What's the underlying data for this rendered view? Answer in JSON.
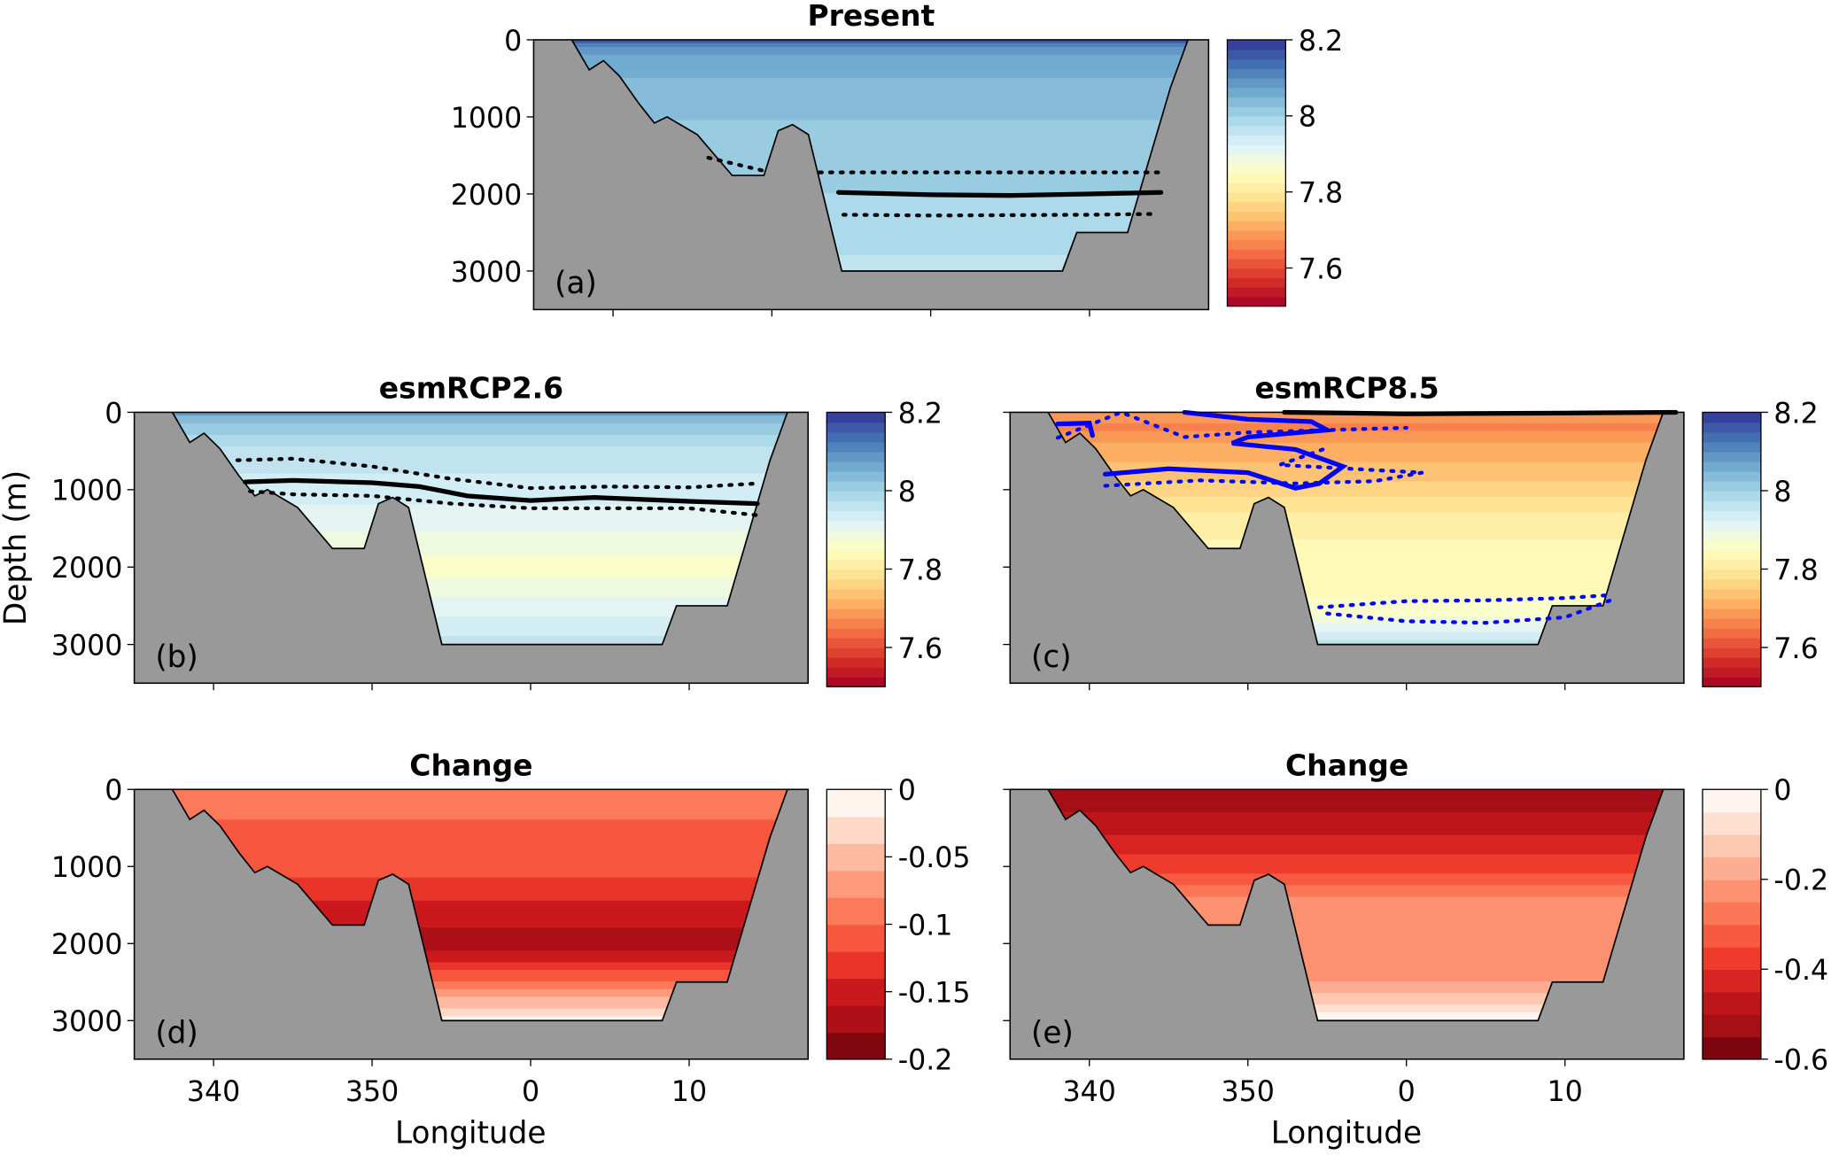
{
  "chart_data": {
    "type": "heatmap",
    "subtype": "filled-contour depth-longitude sections",
    "xlabel": "Longitude",
    "ylabel": "Depth (m)",
    "xlim": [
      335,
      17.5
    ],
    "ylim": [
      3500,
      0
    ],
    "xticks": [
      340,
      350,
      0,
      10
    ],
    "yticks": [
      0,
      1000,
      2000,
      3000
    ],
    "land_color": "#999999",
    "bathymetry": [
      [
        337.4,
        0
      ],
      [
        338.5,
        390
      ],
      [
        339.4,
        270
      ],
      [
        340.4,
        470
      ],
      [
        341.6,
        820
      ],
      [
        342.6,
        1080
      ],
      [
        343.4,
        1000
      ],
      [
        345.3,
        1230
      ],
      [
        347.5,
        1760
      ],
      [
        349.5,
        1760
      ],
      [
        350.4,
        1180
      ],
      [
        351.3,
        1100
      ],
      [
        352.3,
        1230
      ],
      [
        354.4,
        3000
      ],
      [
        8.3,
        3000
      ],
      [
        9.2,
        2500
      ],
      [
        12.4,
        2500
      ],
      [
        15.1,
        620
      ],
      [
        16.2,
        0
      ]
    ],
    "panels": [
      {
        "id": "a",
        "title": "Present",
        "label": "(a)",
        "cmap": "RdYlBu",
        "clim": [
          7.5,
          8.2
        ],
        "cbar_ticks": [
          "8.2",
          "8",
          "7.8",
          "7.6"
        ],
        "cbar_tick_values": [
          8.2,
          8.0,
          7.8,
          7.6
        ],
        "profile": [
          [
            0,
            8.17
          ],
          [
            100,
            8.1
          ],
          [
            300,
            8.06
          ],
          [
            700,
            8.04
          ],
          [
            1200,
            8.02
          ],
          [
            2000,
            8.0
          ],
          [
            2600,
            7.98
          ],
          [
            3000,
            7.97
          ]
        ],
        "lines": [
          {
            "style": "solid",
            "color": "#000000",
            "points": [
              [
                354.2,
                1980
              ],
              [
                0,
                2010
              ],
              [
                5,
                2020
              ],
              [
                10,
                2000
              ],
              [
                14.5,
                1980
              ]
            ]
          },
          {
            "style": "dotted",
            "color": "#000000",
            "points": [
              [
                346,
                1530
              ],
              [
                349.5,
                1700
              ]
            ]
          },
          {
            "style": "dotted",
            "color": "#000000",
            "points": [
              [
                353,
                1720
              ],
              [
                0,
                1720
              ],
              [
                10,
                1720
              ],
              [
                14.8,
                1720
              ]
            ]
          },
          {
            "style": "dotted",
            "color": "#000000",
            "points": [
              [
                354.5,
                2270
              ],
              [
                0,
                2280
              ],
              [
                10,
                2270
              ],
              [
                14,
                2260
              ]
            ]
          }
        ]
      },
      {
        "id": "b",
        "title": "esmRCP2.6",
        "label": "(b)",
        "cmap": "RdYlBu",
        "clim": [
          7.5,
          8.2
        ],
        "cbar_ticks": [
          "8.2",
          "8",
          "7.8",
          "7.6"
        ],
        "cbar_tick_values": [
          8.2,
          8.0,
          7.8,
          7.6
        ],
        "profile": [
          [
            0,
            8.1
          ],
          [
            100,
            8.03
          ],
          [
            400,
            7.98
          ],
          [
            800,
            7.95
          ],
          [
            1300,
            7.92
          ],
          [
            1800,
            7.88
          ],
          [
            2000,
            7.86
          ],
          [
            2300,
            7.89
          ],
          [
            2700,
            7.93
          ],
          [
            3000,
            7.96
          ]
        ],
        "lines": [
          {
            "style": "solid",
            "color": "#000000",
            "points": [
              [
                342,
                900
              ],
              [
                345,
                880
              ],
              [
                350,
                910
              ],
              [
                353,
                960
              ],
              [
                356,
                1080
              ],
              [
                0,
                1140
              ],
              [
                4,
                1100
              ],
              [
                10,
                1150
              ],
              [
                14.3,
                1180
              ]
            ]
          },
          {
            "style": "dotted",
            "color": "#000000",
            "points": [
              [
                341.5,
                620
              ],
              [
                345,
                600
              ],
              [
                350,
                700
              ],
              [
                355,
                860
              ],
              [
                0,
                980
              ],
              [
                5,
                960
              ],
              [
                10,
                970
              ],
              [
                14.3,
                920
              ]
            ]
          },
          {
            "style": "dotted",
            "color": "#000000",
            "points": [
              [
                342.3,
                1020
              ],
              [
                345,
                1060
              ],
              [
                350,
                1080
              ],
              [
                355,
                1180
              ],
              [
                0,
                1240
              ],
              [
                10,
                1240
              ],
              [
                14.3,
                1330
              ]
            ]
          }
        ]
      },
      {
        "id": "c",
        "title": "esmRCP8.5",
        "label": "(c)",
        "cmap": "RdYlBu",
        "clim": [
          7.5,
          8.2
        ],
        "cbar_ticks": [
          "8.2",
          "8",
          "7.8",
          "7.6"
        ],
        "cbar_tick_values": [
          8.2,
          8.0,
          7.8,
          7.6
        ],
        "profile": [
          [
            0,
            7.7
          ],
          [
            200,
            7.67
          ],
          [
            500,
            7.71
          ],
          [
            900,
            7.75
          ],
          [
            1300,
            7.8
          ],
          [
            1700,
            7.83
          ],
          [
            2200,
            7.84
          ],
          [
            2600,
            7.86
          ],
          [
            2850,
            7.92
          ],
          [
            3000,
            7.96
          ]
        ],
        "lines": [
          {
            "style": "solid",
            "color": "#000000",
            "points": [
              [
                352.3,
                0
              ],
              [
                0,
                20
              ],
              [
                10,
                10
              ],
              [
                17,
                0
              ]
            ]
          },
          {
            "style": "solid",
            "color": "#0000ff",
            "points": [
              [
                338,
                150
              ],
              [
                340,
                140
              ],
              [
                340.2,
                300
              ]
            ]
          },
          {
            "style": "solid",
            "color": "#0000ff",
            "points": [
              [
                346,
                0
              ],
              [
                350,
                90
              ],
              [
                354,
                120
              ],
              [
                355,
                230
              ],
              [
                350,
                320
              ],
              [
                349,
                400
              ],
              [
                353,
                480
              ],
              [
                356,
                700
              ],
              [
                354.5,
                920
              ],
              [
                353,
                980
              ],
              [
                350,
                780
              ],
              [
                345,
                730
              ],
              [
                341,
                800
              ]
            ]
          },
          {
            "style": "dotted",
            "color": "#0000ff",
            "points": [
              [
                338,
                330
              ],
              [
                342,
                0
              ],
              [
                346,
                320
              ],
              [
                350,
                260
              ],
              [
                355,
                230
              ],
              [
                0,
                200
              ]
            ]
          },
          {
            "style": "dotted",
            "color": "#0000ff",
            "points": [
              [
                341,
                950
              ],
              [
                347,
                880
              ],
              [
                353,
                920
              ],
              [
                358,
                890
              ],
              [
                1,
                780
              ],
              [
                352,
                680
              ],
              [
                355,
                460
              ]
            ]
          },
          {
            "style": "dotted",
            "color": "#0000ff",
            "points": [
              [
                354.5,
                2520
              ],
              [
                0,
                2440
              ],
              [
                5,
                2430
              ],
              [
                10,
                2400
              ],
              [
                13,
                2360
              ]
            ]
          },
          {
            "style": "dotted",
            "color": "#0000ff",
            "points": [
              [
                355,
                2600
              ],
              [
                0,
                2700
              ],
              [
                5,
                2720
              ],
              [
                10,
                2650
              ],
              [
                13,
                2420
              ]
            ]
          }
        ]
      },
      {
        "id": "d",
        "title": "Change",
        "label": "(d)",
        "cmap": "Reds_r",
        "clim": [
          -0.2,
          0
        ],
        "cbar_ticks": [
          "0",
          "-0.05",
          "-0.1",
          "-0.15",
          "-0.2"
        ],
        "cbar_tick_values": [
          0,
          -0.05,
          -0.1,
          -0.15,
          -0.2
        ],
        "profile": [
          [
            0,
            -0.1
          ],
          [
            400,
            -0.1
          ],
          [
            900,
            -0.105
          ],
          [
            1300,
            -0.13
          ],
          [
            1700,
            -0.155
          ],
          [
            2000,
            -0.175
          ],
          [
            2300,
            -0.13
          ],
          [
            2600,
            -0.08
          ],
          [
            2850,
            -0.04
          ],
          [
            3000,
            -0.01
          ]
        ],
        "lines": []
      },
      {
        "id": "e",
        "title": "Change",
        "label": "(e)",
        "cmap": "Reds_r",
        "clim": [
          -0.6,
          0
        ],
        "cbar_ticks": [
          "0",
          "-0.2",
          "-0.4",
          "-0.6"
        ],
        "cbar_tick_values": [
          0,
          -0.2,
          -0.4,
          -0.6
        ],
        "profile": [
          [
            0,
            -0.52
          ],
          [
            300,
            -0.5
          ],
          [
            700,
            -0.43
          ],
          [
            1100,
            -0.35
          ],
          [
            1400,
            -0.25
          ],
          [
            2000,
            -0.21
          ],
          [
            2500,
            -0.2
          ],
          [
            2800,
            -0.1
          ],
          [
            2950,
            -0.03
          ],
          [
            3000,
            0
          ]
        ],
        "lines": []
      }
    ]
  }
}
